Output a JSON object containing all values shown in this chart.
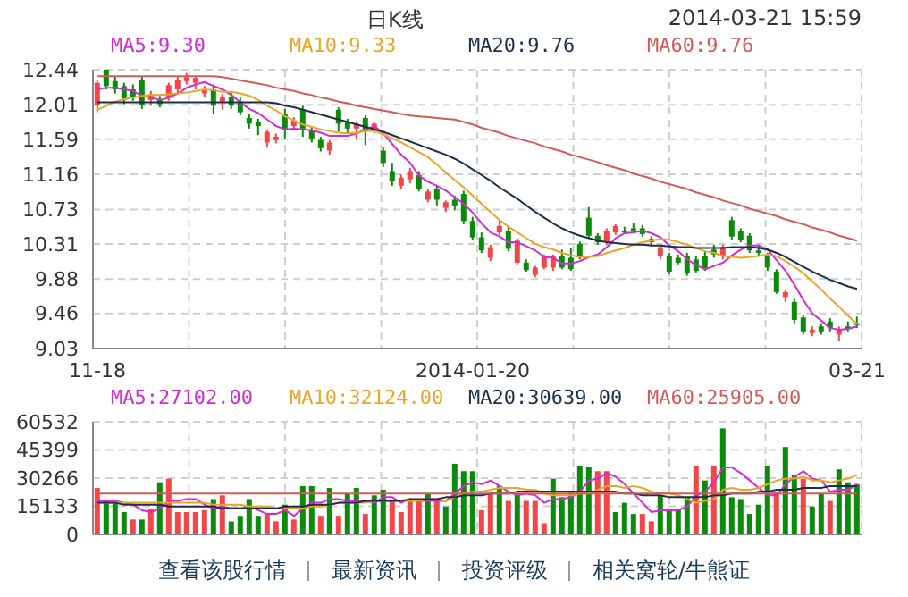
{
  "chart_data": [
    {
      "type": "candlestick",
      "title": "日K线",
      "subtitle": "2014-03-21 15:59",
      "categories": [
        "11-18",
        null,
        null,
        null,
        null,
        null,
        null,
        null,
        null,
        null,
        null,
        null,
        null,
        null,
        null,
        null,
        null,
        null,
        null,
        null,
        null,
        null,
        null,
        null,
        null,
        null,
        null,
        null,
        null,
        null,
        null,
        null,
        null,
        null,
        null,
        null,
        null,
        null,
        null,
        null,
        null,
        null,
        "2014-01-20",
        null,
        null,
        null,
        null,
        null,
        null,
        null,
        null,
        null,
        null,
        null,
        null,
        null,
        null,
        null,
        null,
        null,
        null,
        null,
        null,
        null,
        null,
        null,
        null,
        null,
        null,
        null,
        null,
        null,
        null,
        null,
        null,
        null,
        null,
        null,
        null,
        null,
        null,
        null,
        null,
        null,
        null,
        "03-21"
      ],
      "ohlc": [
        [
          12.01,
          12.32,
          11.92,
          12.28
        ],
        [
          12.44,
          12.5,
          12.2,
          12.24
        ],
        [
          12.3,
          12.36,
          12.15,
          12.2
        ],
        [
          12.24,
          12.28,
          12.02,
          12.07
        ],
        [
          12.2,
          12.26,
          12.06,
          12.1
        ],
        [
          12.32,
          12.36,
          11.96,
          12.01
        ],
        [
          12.07,
          12.18,
          12.0,
          12.14
        ],
        [
          12.08,
          12.12,
          11.98,
          12.02
        ],
        [
          12.1,
          12.28,
          12.06,
          12.25
        ],
        [
          12.2,
          12.36,
          12.15,
          12.32
        ],
        [
          12.3,
          12.4,
          12.26,
          12.35
        ],
        [
          12.28,
          12.36,
          12.2,
          12.34
        ],
        [
          12.15,
          12.24,
          12.1,
          12.2
        ],
        [
          12.2,
          12.26,
          11.9,
          12.0
        ],
        [
          12.05,
          12.14,
          11.95,
          12.1
        ],
        [
          12.1,
          12.16,
          11.96,
          12.0
        ],
        [
          12.05,
          12.1,
          11.88,
          11.92
        ],
        [
          11.85,
          11.9,
          11.72,
          11.78
        ],
        [
          11.8,
          11.84,
          11.64,
          11.75
        ],
        [
          11.55,
          11.7,
          11.5,
          11.68
        ],
        [
          11.58,
          11.66,
          11.54,
          11.62
        ],
        [
          11.9,
          11.96,
          11.6,
          11.72
        ],
        [
          11.75,
          11.86,
          11.7,
          11.82
        ],
        [
          11.95,
          12.0,
          11.62,
          11.72
        ],
        [
          11.7,
          11.74,
          11.55,
          11.6
        ],
        [
          11.58,
          11.62,
          11.44,
          11.48
        ],
        [
          11.45,
          11.58,
          11.4,
          11.55
        ],
        [
          11.95,
          11.98,
          11.68,
          11.78
        ],
        [
          11.8,
          11.84,
          11.66,
          11.72
        ],
        [
          11.72,
          11.8,
          11.6,
          11.78
        ],
        [
          11.85,
          11.88,
          11.52,
          11.7
        ],
        [
          11.72,
          11.8,
          11.66,
          11.78
        ],
        [
          11.45,
          11.5,
          11.25,
          11.3
        ],
        [
          11.2,
          11.3,
          11.02,
          11.08
        ],
        [
          11.02,
          11.16,
          10.98,
          11.12
        ],
        [
          11.1,
          11.24,
          11.05,
          11.2
        ],
        [
          11.15,
          11.2,
          10.95,
          10.98
        ],
        [
          10.85,
          10.98,
          10.82,
          10.95
        ],
        [
          10.98,
          11.02,
          10.78,
          10.85
        ],
        [
          10.75,
          10.84,
          10.7,
          10.82
        ],
        [
          10.85,
          10.9,
          10.72,
          10.78
        ],
        [
          10.92,
          10.96,
          10.55,
          10.59
        ],
        [
          10.59,
          10.64,
          10.36,
          10.39
        ],
        [
          10.39,
          10.45,
          10.2,
          10.23
        ],
        [
          10.14,
          10.3,
          10.1,
          10.27
        ],
        [
          10.45,
          10.6,
          10.42,
          10.53
        ],
        [
          10.47,
          10.52,
          10.22,
          10.25
        ],
        [
          10.08,
          10.38,
          10.05,
          10.35
        ],
        [
          10.08,
          10.12,
          9.97,
          9.99
        ],
        [
          9.93,
          10.04,
          9.9,
          10.02
        ],
        [
          10.02,
          10.18,
          10.0,
          10.16
        ],
        [
          10.02,
          10.18,
          9.98,
          10.16
        ],
        [
          10.16,
          10.24,
          10.0,
          10.02
        ],
        [
          10.14,
          10.26,
          9.98,
          10.0
        ],
        [
          10.31,
          10.34,
          10.12,
          10.16
        ],
        [
          10.63,
          10.76,
          10.38,
          10.41
        ],
        [
          10.41,
          10.44,
          10.3,
          10.33
        ],
        [
          10.33,
          10.5,
          10.3,
          10.47
        ],
        [
          10.45,
          10.55,
          10.42,
          10.53
        ],
        [
          10.47,
          10.52,
          10.43,
          10.46
        ],
        [
          10.5,
          10.56,
          10.44,
          10.47
        ],
        [
          10.5,
          10.54,
          10.4,
          10.43
        ],
        [
          10.37,
          10.4,
          10.28,
          10.33
        ],
        [
          10.16,
          10.3,
          10.12,
          10.27
        ],
        [
          10.16,
          10.2,
          9.94,
          9.97
        ],
        [
          10.14,
          10.18,
          10.06,
          10.08
        ],
        [
          10.16,
          10.2,
          9.92,
          9.95
        ],
        [
          10.12,
          10.16,
          9.96,
          9.98
        ],
        [
          10.16,
          10.22,
          9.98,
          10.0
        ],
        [
          10.24,
          10.3,
          10.14,
          10.18
        ],
        [
          10.16,
          10.3,
          10.12,
          10.27
        ],
        [
          10.6,
          10.64,
          10.36,
          10.4
        ],
        [
          10.47,
          10.5,
          10.33,
          10.36
        ],
        [
          10.41,
          10.44,
          10.2,
          10.23
        ],
        [
          10.23,
          10.3,
          10.16,
          10.2
        ],
        [
          10.16,
          10.2,
          9.98,
          10.02
        ],
        [
          9.97,
          10.0,
          9.7,
          9.72
        ],
        [
          9.66,
          9.74,
          9.6,
          9.72
        ],
        [
          9.6,
          9.64,
          9.34,
          9.38
        ],
        [
          9.41,
          9.44,
          9.2,
          9.24
        ],
        [
          9.22,
          9.3,
          9.18,
          9.26
        ],
        [
          9.3,
          9.34,
          9.2,
          9.24
        ],
        [
          9.36,
          9.4,
          9.24,
          9.28
        ],
        [
          9.2,
          9.3,
          9.12,
          9.26
        ],
        [
          9.3,
          9.36,
          9.24,
          9.27
        ],
        [
          9.34,
          9.42,
          9.28,
          9.32
        ]
      ],
      "colors": [
        "#f04848",
        "#0b8a0b",
        "#0b8a0b",
        "#0b8a0b",
        "#0b8a0b",
        "#0b8a0b",
        "#f04848",
        "#0b8a0b",
        "#f04848",
        "#f04848",
        "#f04848",
        "#f04848",
        "#f04848",
        "#0b8a0b",
        "#f04848",
        "#0b8a0b",
        "#0b8a0b",
        "#0b8a0b",
        "#0b8a0b",
        "#f04848",
        "#f04848",
        "#0b8a0b",
        "#f04848",
        "#0b8a0b",
        "#0b8a0b",
        "#0b8a0b",
        "#f04848",
        "#0b8a0b",
        "#0b8a0b",
        "#f04848",
        "#0b8a0b",
        "#f04848",
        "#0b8a0b",
        "#0b8a0b",
        "#f04848",
        "#f04848",
        "#0b8a0b",
        "#f04848",
        "#0b8a0b",
        "#f04848",
        "#0b8a0b",
        "#0b8a0b",
        "#0b8a0b",
        "#0b8a0b",
        "#f04848",
        "#f04848",
        "#0b8a0b",
        "#f04848",
        "#0b8a0b",
        "#f04848",
        "#f04848",
        "#f04848",
        "#0b8a0b",
        "#0b8a0b",
        "#0b8a0b",
        "#0b8a0b",
        "#0b8a0b",
        "#f04848",
        "#f04848",
        "#0b8a0b",
        "#0b8a0b",
        "#0b8a0b",
        "#0b8a0b",
        "#f04848",
        "#0b8a0b",
        "#0b8a0b",
        "#0b8a0b",
        "#0b8a0b",
        "#0b8a0b",
        "#0b8a0b",
        "#f04848",
        "#0b8a0b",
        "#0b8a0b",
        "#0b8a0b",
        "#0b8a0b",
        "#0b8a0b",
        "#0b8a0b",
        "#f04848",
        "#0b8a0b",
        "#0b8a0b",
        "#f04848",
        "#0b8a0b",
        "#0b8a0b",
        "#f04848",
        "#0b8a0b",
        "#0b8a0b"
      ],
      "series": [
        {
          "name": "MA5:9.30",
          "type": "line",
          "color": "#d42ad4",
          "values": [
            12.2,
            12.22,
            12.22,
            12.2,
            12.18,
            12.12,
            12.1,
            12.07,
            12.1,
            12.15,
            12.22,
            12.26,
            12.29,
            12.24,
            12.2,
            12.13,
            12.04,
            11.96,
            11.91,
            11.83,
            11.75,
            11.71,
            11.72,
            11.71,
            11.7,
            11.67,
            11.63,
            11.63,
            11.63,
            11.66,
            11.71,
            11.75,
            11.66,
            11.53,
            11.4,
            11.3,
            11.14,
            11.07,
            11.02,
            10.96,
            10.88,
            10.8,
            10.69,
            10.56,
            10.45,
            10.4,
            10.33,
            10.33,
            10.28,
            10.23,
            10.15,
            10.14,
            10.07,
            10.07,
            10.1,
            10.15,
            10.18,
            10.27,
            10.38,
            10.44,
            10.45,
            10.47,
            10.44,
            10.39,
            10.29,
            10.22,
            10.12,
            10.05,
            10.0,
            10.04,
            10.08,
            10.17,
            10.24,
            10.29,
            10.29,
            10.24,
            10.11,
            9.98,
            9.81,
            9.62,
            9.46,
            9.37,
            9.28,
            9.26,
            9.27,
            9.3
          ]
        },
        {
          "name": "MA10:9.33",
          "type": "line",
          "color": "#e8a628",
          "values": [
            11.95,
            12.0,
            12.05,
            12.08,
            12.1,
            12.12,
            12.13,
            12.13,
            12.14,
            12.15,
            12.16,
            12.18,
            12.2,
            12.19,
            12.17,
            12.17,
            12.15,
            12.12,
            12.07,
            12.0,
            11.94,
            11.87,
            11.82,
            11.77,
            11.74,
            11.71,
            11.69,
            11.67,
            11.66,
            11.67,
            11.69,
            11.69,
            11.65,
            11.6,
            11.55,
            11.49,
            11.43,
            11.37,
            11.28,
            11.18,
            11.09,
            11.0,
            10.9,
            10.8,
            10.7,
            10.6,
            10.52,
            10.45,
            10.38,
            10.31,
            10.27,
            10.24,
            10.2,
            10.17,
            10.15,
            10.15,
            10.16,
            10.2,
            10.23,
            10.26,
            10.3,
            10.33,
            10.35,
            10.37,
            10.36,
            10.33,
            10.3,
            10.26,
            10.22,
            10.2,
            10.16,
            10.15,
            10.14,
            10.15,
            10.16,
            10.18,
            10.16,
            10.1,
            10.03,
            9.95,
            9.85,
            9.75,
            9.64,
            9.54,
            9.43,
            9.33
          ]
        },
        {
          "name": "MA20:9.76",
          "type": "line",
          "color": "#1c2e4a",
          "values": [
            12.04,
            12.04,
            12.04,
            12.04,
            12.04,
            12.04,
            12.04,
            12.04,
            12.04,
            12.04,
            12.04,
            12.04,
            12.04,
            12.04,
            12.04,
            12.04,
            12.04,
            12.04,
            12.04,
            12.04,
            12.03,
            12.0,
            11.98,
            11.95,
            11.92,
            11.89,
            11.86,
            11.83,
            11.8,
            11.77,
            11.74,
            11.71,
            11.68,
            11.64,
            11.6,
            11.56,
            11.52,
            11.48,
            11.44,
            11.4,
            11.35,
            11.29,
            11.22,
            11.15,
            11.08,
            11.0,
            10.93,
            10.86,
            10.78,
            10.7,
            10.63,
            10.56,
            10.5,
            10.45,
            10.41,
            10.38,
            10.35,
            10.33,
            10.32,
            10.31,
            10.3,
            10.3,
            10.29,
            10.29,
            10.28,
            10.27,
            10.27,
            10.26,
            10.26,
            10.26,
            10.26,
            10.27,
            10.27,
            10.27,
            10.26,
            10.24,
            10.2,
            10.15,
            10.09,
            10.03,
            9.97,
            9.92,
            9.87,
            9.83,
            9.79,
            9.76
          ]
        },
        {
          "name": "MA60:9.76",
          "type": "line",
          "color": "#d45a5a",
          "values": [
            12.36,
            12.36,
            12.36,
            12.36,
            12.36,
            12.36,
            12.36,
            12.36,
            12.36,
            12.36,
            12.36,
            12.36,
            12.36,
            12.36,
            12.35,
            12.33,
            12.31,
            12.29,
            12.27,
            12.25,
            12.22,
            12.2,
            12.18,
            12.15,
            12.13,
            12.1,
            12.08,
            12.05,
            12.03,
            12.0,
            11.98,
            11.96,
            11.94,
            11.92,
            11.9,
            11.88,
            11.87,
            11.86,
            11.85,
            11.84,
            11.83,
            11.8,
            11.77,
            11.73,
            11.7,
            11.67,
            11.63,
            11.6,
            11.57,
            11.54,
            11.5,
            11.47,
            11.44,
            11.4,
            11.37,
            11.34,
            11.31,
            11.27,
            11.24,
            11.21,
            11.17,
            11.14,
            11.11,
            11.07,
            11.04,
            11.01,
            10.98,
            10.94,
            10.91,
            10.88,
            10.84,
            10.81,
            10.78,
            10.74,
            10.71,
            10.68,
            10.65,
            10.61,
            10.58,
            10.55,
            10.51,
            10.48,
            10.45,
            10.41,
            10.38,
            10.35
          ]
        }
      ],
      "ylim": [
        9.03,
        12.44
      ],
      "yticks": [
        9.03,
        9.46,
        9.88,
        10.31,
        10.73,
        11.16,
        11.59,
        12.01,
        12.44
      ],
      "grid": true,
      "legend": "top"
    },
    {
      "type": "bar",
      "categories": [
        null,
        null,
        null,
        null,
        null,
        null,
        null,
        null,
        null,
        null,
        null,
        null,
        null,
        null,
        null,
        null,
        null,
        null,
        null,
        null,
        null,
        null,
        null,
        null,
        null,
        null,
        null,
        null,
        null,
        null,
        null,
        null,
        null,
        null,
        null,
        null,
        null,
        null,
        null,
        null,
        null,
        null,
        null,
        null,
        null,
        null,
        null,
        null,
        null,
        null,
        null,
        null,
        null,
        null,
        null,
        null,
        null,
        null,
        null,
        null,
        null,
        null,
        null,
        null,
        null,
        null,
        null,
        null,
        null,
        null,
        null,
        null,
        null,
        null,
        null,
        null,
        null,
        null,
        null,
        null,
        null,
        null,
        null,
        null,
        null,
        null
      ],
      "tick_labels": "y",
      "series": [
        {
          "type": "bar",
          "values": [
            25000,
            18000,
            17000,
            12000,
            8000,
            8000,
            14000,
            28000,
            30000,
            12000,
            12000,
            12000,
            13000,
            19000,
            21000,
            7000,
            10000,
            19000,
            10000,
            11000,
            7000,
            16000,
            8000,
            26000,
            26000,
            10000,
            25000,
            10000,
            22000,
            25000,
            11000,
            21000,
            24000,
            18000,
            12000,
            18000,
            18000,
            22000,
            18000,
            15000,
            38000,
            34000,
            34000,
            13000,
            23000,
            26000,
            18000,
            22000,
            18000,
            18000,
            6000,
            30000,
            20000,
            23000,
            37000,
            36000,
            34000,
            34000,
            12000,
            17000,
            11000,
            11000,
            7000,
            21000,
            14000,
            14000,
            20000,
            37000,
            29000,
            37000,
            57000,
            20000,
            19000,
            11000,
            16000,
            37000,
            23000,
            47000,
            32000,
            30000,
            15000,
            22000,
            18000,
            35000,
            28000,
            27000
          ],
          "colors": [
            "#f04848",
            "#0b8a0b",
            "#0b8a0b",
            "#0b8a0b",
            "#f04848",
            "#0b8a0b",
            "#f04848",
            "#0b8a0b",
            "#f04848",
            "#f04848",
            "#f04848",
            "#f04848",
            "#f04848",
            "#0b8a0b",
            "#f04848",
            "#0b8a0b",
            "#0b8a0b",
            "#0b8a0b",
            "#0b8a0b",
            "#f04848",
            "#f04848",
            "#0b8a0b",
            "#f04848",
            "#0b8a0b",
            "#0b8a0b",
            "#f04848",
            "#0b8a0b",
            "#f04848",
            "#0b8a0b",
            "#0b8a0b",
            "#f04848",
            "#0b8a0b",
            "#0b8a0b",
            "#f04848",
            "#f04848",
            "#f04848",
            "#f04848",
            "#0b8a0b",
            "#f04848",
            "#0b8a0b",
            "#0b8a0b",
            "#0b8a0b",
            "#0b8a0b",
            "#f04848",
            "#f04848",
            "#0b8a0b",
            "#f04848",
            "#0b8a0b",
            "#f04848",
            "#f04848",
            "#f04848",
            "#0b8a0b",
            "#0b8a0b",
            "#0b8a0b",
            "#0b8a0b",
            "#0b8a0b",
            "#f04848",
            "#f04848",
            "#0b8a0b",
            "#0b8a0b",
            "#0b8a0b",
            "#f04848",
            "#f04848",
            "#0b8a0b",
            "#0b8a0b",
            "#0b8a0b",
            "#0b8a0b",
            "#f04848",
            "#0b8a0b",
            "#f04848",
            "#0b8a0b",
            "#0b8a0b",
            "#0b8a0b",
            "#0b8a0b",
            "#0b8a0b",
            "#0b8a0b",
            "#f04848",
            "#0b8a0b",
            "#0b8a0b",
            "#f04848",
            "#0b8a0b",
            "#0b8a0b",
            "#f04848",
            "#0b8a0b",
            "#0b8a0b",
            "#0b8a0b"
          ]
        },
        {
          "name": "MA5:27102.00",
          "type": "line",
          "color": "#d42ad4",
          "values": [
            18000,
            18000,
            18000,
            17000,
            16000,
            13000,
            12000,
            14000,
            18000,
            18000,
            19000,
            19000,
            16000,
            14000,
            15000,
            14000,
            14000,
            15000,
            13000,
            11000,
            11000,
            13000,
            10000,
            14000,
            17000,
            17000,
            19000,
            19000,
            18000,
            18000,
            18000,
            17000,
            20000,
            20000,
            17000,
            19000,
            18000,
            18000,
            18000,
            18000,
            22000,
            26000,
            28000,
            27000,
            29000,
            26000,
            23000,
            21000,
            22000,
            21000,
            17000,
            19000,
            19000,
            20000,
            23000,
            29000,
            30000,
            33000,
            31000,
            27000,
            22000,
            17000,
            12000,
            13000,
            13000,
            13000,
            15000,
            21000,
            23000,
            28000,
            36000,
            36000,
            33000,
            29000,
            25000,
            21000,
            21000,
            27000,
            31000,
            34000,
            30000,
            29000,
            23000,
            24000,
            24000,
            27000
          ]
        },
        {
          "name": "MA10:32124.00",
          "type": "line",
          "color": "#e8a628",
          "values": [
            17000,
            17000,
            17000,
            17000,
            17000,
            17000,
            17000,
            17000,
            17000,
            17000,
            17000,
            17000,
            17000,
            16000,
            16000,
            16000,
            16000,
            15000,
            15000,
            15000,
            14000,
            14000,
            14000,
            14000,
            15000,
            15000,
            16000,
            17000,
            17000,
            17000,
            17000,
            18000,
            18000,
            18000,
            18000,
            18000,
            18000,
            19000,
            19000,
            18000,
            20000,
            22000,
            23000,
            23000,
            24000,
            25000,
            25000,
            25000,
            24000,
            24000,
            22000,
            21000,
            21000,
            21000,
            22000,
            22000,
            24000,
            26000,
            26000,
            25000,
            26000,
            25000,
            23000,
            22000,
            22000,
            21000,
            19000,
            17000,
            18000,
            19000,
            24000,
            25000,
            24000,
            24000,
            25000,
            27000,
            29000,
            30000,
            30000,
            31000,
            29000,
            29000,
            28000,
            29000,
            30000,
            32000
          ]
        },
        {
          "name": "MA20:30639.00",
          "type": "line",
          "color": "#1c2e4a",
          "values": [
            17000,
            17000,
            17000,
            16000,
            16000,
            16000,
            16000,
            16000,
            15000,
            15000,
            15000,
            15000,
            15000,
            15000,
            14000,
            14000,
            14000,
            14000,
            14000,
            14000,
            14000,
            15000,
            15000,
            15000,
            16000,
            16000,
            16000,
            17000,
            17000,
            17000,
            18000,
            18000,
            18000,
            18000,
            18000,
            19000,
            19000,
            19000,
            19000,
            20000,
            20000,
            21000,
            21000,
            21000,
            22000,
            22000,
            22000,
            23000,
            23000,
            23000,
            23000,
            23000,
            23000,
            23000,
            23000,
            23000,
            23000,
            23000,
            23000,
            22000,
            22000,
            21000,
            21000,
            21000,
            20000,
            20000,
            20000,
            20000,
            20000,
            21000,
            21000,
            22000,
            22000,
            22000,
            23000,
            23000,
            24000,
            24000,
            24000,
            25000,
            25000,
            25000,
            26000,
            26000,
            26000,
            26000
          ]
        },
        {
          "name": "MA60:25905.00",
          "type": "line",
          "color": "#d45a5a",
          "values": [
            22000,
            22000,
            22000,
            22000,
            22000,
            22000,
            22000,
            22000,
            22000,
            22000,
            22000,
            22000,
            22000,
            22000,
            22000,
            22000,
            22000,
            22000,
            22000,
            22000,
            22000,
            22000,
            22000,
            22000,
            22000,
            22000,
            22000,
            22000,
            22000,
            22000,
            22000,
            22000,
            22000,
            22000,
            22000,
            22000,
            22000,
            22000,
            22000,
            22000,
            22000,
            22000,
            22000,
            22000,
            22000,
            22000,
            22000,
            22000,
            22000,
            22000,
            22000,
            22000,
            22000,
            22000,
            22000,
            22000,
            22000,
            22000,
            22000,
            22000,
            22000,
            22000,
            22000,
            22000,
            22000,
            22000,
            22000,
            22000,
            22000,
            22000,
            22000,
            22000,
            22000,
            22000,
            22000,
            22000,
            22000,
            22000,
            22000,
            22000,
            22000,
            22000,
            22000,
            22000,
            22000,
            22000
          ]
        }
      ],
      "ylim": [
        0,
        60532
      ],
      "yticks": [
        0,
        15133,
        30266,
        45399,
        60532
      ],
      "grid": true,
      "legend": "top",
      "annotations": [
        "查看该股行情",
        "最新资讯",
        "投资评级",
        "相关窝轮/牛熊证"
      ]
    }
  ]
}
